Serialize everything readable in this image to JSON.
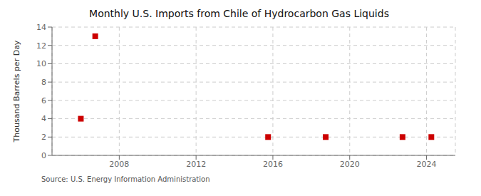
{
  "chart_data": {
    "type": "scatter",
    "title": "Monthly U.S. Imports from Chile of Hydrocarbon Gas Liquids",
    "ylabel": "Thousand Barrels per Day",
    "annotation": "Source: U.S. Energy Information Administration",
    "x": [
      2006.0,
      2006.75,
      2015.75,
      2018.75,
      2022.75,
      2024.25
    ],
    "values": [
      4.0,
      13.0,
      2.0,
      2.0,
      2.0,
      2.0
    ],
    "color": "#cc0000",
    "marker": "square",
    "xlim": [
      2004.5,
      2025.5
    ],
    "ylim": [
      0,
      14
    ],
    "xticks": [
      2008,
      2012,
      2016,
      2020,
      2024
    ],
    "yticks": [
      0,
      2,
      4,
      6,
      8,
      10,
      12,
      14
    ],
    "grid": true
  }
}
